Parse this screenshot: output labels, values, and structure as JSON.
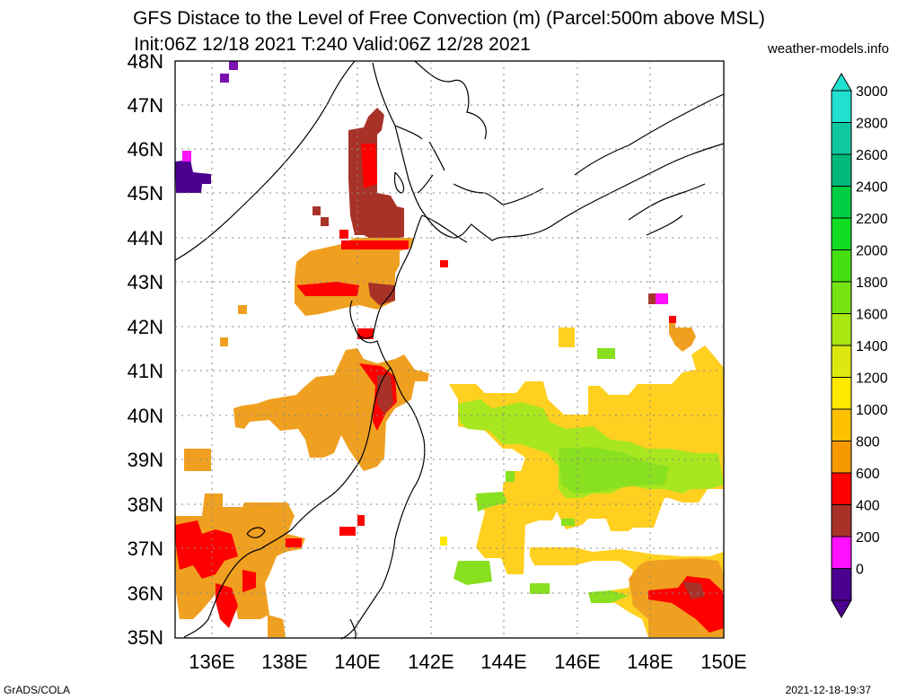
{
  "title": {
    "line1": "GFS Distace to the Level of Free Convection (m) (Parcel:500m above MSL)",
    "line2": "Init:06Z 12/18 2021 T:240 Valid:06Z 12/28 2021"
  },
  "source": "weather-models.info",
  "footer": {
    "left": "GrADS/COLA",
    "right": "2021-12-18-19:37"
  },
  "map": {
    "lat_labels": [
      "48N",
      "47N",
      "46N",
      "45N",
      "44N",
      "43N",
      "42N",
      "41N",
      "40N",
      "39N",
      "38N",
      "37N",
      "36N",
      "35N"
    ],
    "lon_labels": [
      "136E",
      "138E",
      "140E",
      "142E",
      "144E",
      "146E",
      "148E",
      "150E"
    ]
  },
  "colorbar": {
    "levels": [
      "3000",
      "2800",
      "2600",
      "2400",
      "2200",
      "2000",
      "1800",
      "1600",
      "1400",
      "1200",
      "1000",
      "800",
      "600",
      "400",
      "200",
      "0"
    ],
    "colors_top_to_bottom": [
      "#20e0d0",
      "#10c8a0",
      "#00b878",
      "#00cc44",
      "#11dd22",
      "#44e011",
      "#77e411",
      "#aae611",
      "#dde811",
      "#ffe800",
      "#ffc000",
      "#f59a00",
      "#ff0000",
      "#a83228",
      "#ff10ff",
      "#4b0090"
    ]
  },
  "legend": {
    "field": {
      "LFC distance (m)": "color bar"
    }
  }
}
